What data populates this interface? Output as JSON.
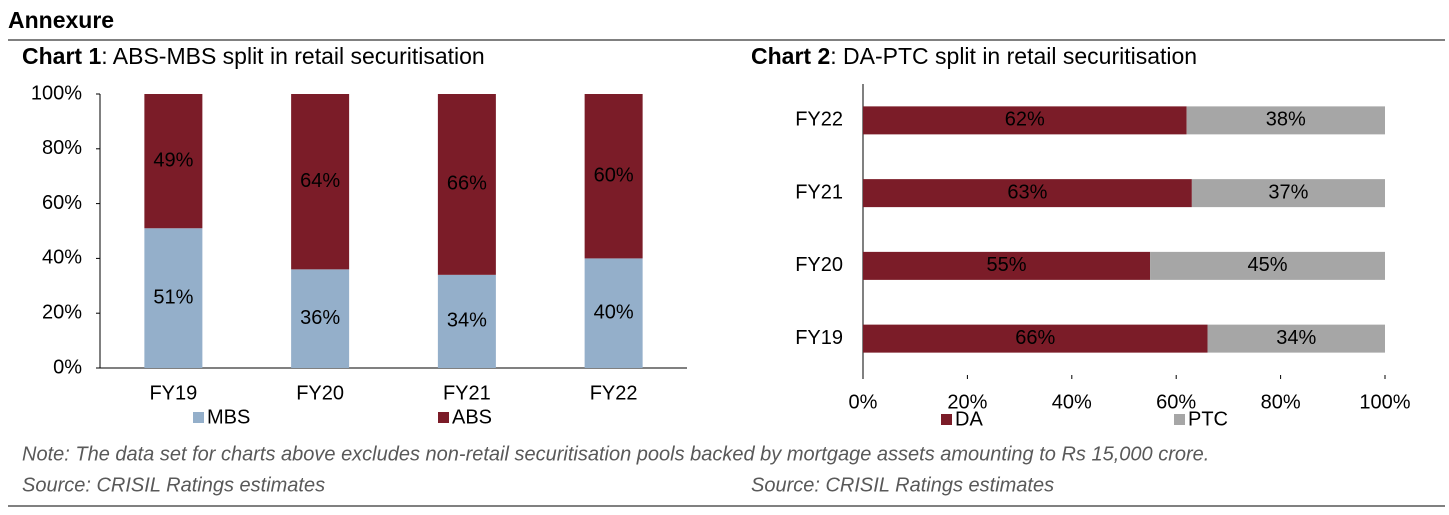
{
  "header": {
    "title": "Annexure"
  },
  "chart_data": [
    {
      "type": "bar",
      "orientation": "vertical",
      "stacked": true,
      "label": "Chart 1",
      "title": ": ABS-MBS split in retail securitisation",
      "categories": [
        "FY19",
        "FY20",
        "FY21",
        "FY22"
      ],
      "series": [
        {
          "name": "MBS",
          "color": "#94afca",
          "values": [
            51,
            36,
            34,
            40
          ],
          "value_labels": [
            "51%",
            "36%",
            "34%",
            "40%"
          ]
        },
        {
          "name": "ABS",
          "color": "#7b1c28",
          "values": [
            49,
            64,
            66,
            60
          ],
          "value_labels": [
            "49%",
            "64%",
            "66%",
            "60%"
          ]
        }
      ],
      "ylim": [
        0,
        100
      ],
      "yticks": [
        {
          "value": 0,
          "label": "0%"
        },
        {
          "value": 20,
          "label": "20%"
        },
        {
          "value": 40,
          "label": "40%"
        },
        {
          "value": 60,
          "label": "60%"
        },
        {
          "value": 80,
          "label": "80%"
        },
        {
          "value": 100,
          "label": "100%"
        }
      ],
      "grid": false,
      "legend": "bottom"
    },
    {
      "type": "bar",
      "orientation": "horizontal",
      "stacked": true,
      "label": "Chart 2",
      "title": ": DA-PTC split in retail securitisation",
      "categories": [
        "FY19",
        "FY20",
        "FY21",
        "FY22"
      ],
      "series": [
        {
          "name": "DA",
          "color": "#7b1c28",
          "values": [
            66,
            55,
            63,
            62
          ],
          "value_labels": [
            "66%",
            "55%",
            "63%",
            "62%"
          ]
        },
        {
          "name": "PTC",
          "color": "#a6a6a6",
          "values": [
            34,
            45,
            37,
            38
          ],
          "value_labels": [
            "34%",
            "45%",
            "37%",
            "38%"
          ]
        }
      ],
      "xlim": [
        0,
        100
      ],
      "xticks": [
        {
          "value": 0,
          "label": "0%"
        },
        {
          "value": 20,
          "label": "20%"
        },
        {
          "value": 40,
          "label": "40%"
        },
        {
          "value": 60,
          "label": "60%"
        },
        {
          "value": 80,
          "label": "80%"
        },
        {
          "value": 100,
          "label": "100%"
        }
      ],
      "grid": false,
      "legend": "bottom"
    }
  ],
  "note": "Note: The data set for charts above excludes non-retail securitisation pools backed by mortgage assets amounting to Rs 15,000 crore.",
  "sources": [
    "Source: CRISIL Ratings estimates",
    "Source: CRISIL Ratings estimates"
  ]
}
